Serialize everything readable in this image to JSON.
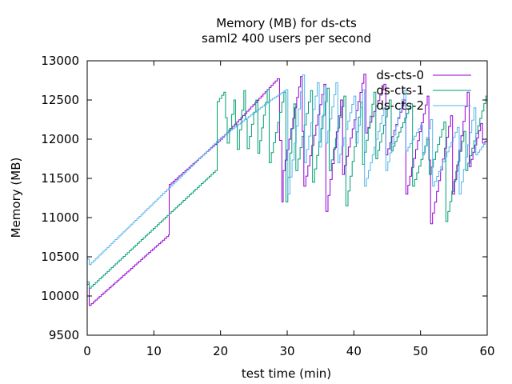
{
  "chart_data": {
    "type": "line",
    "title": "Memory (MB) for ds-cts",
    "subtitle": "saml2 400 users per second",
    "xlabel": "test time (min)",
    "ylabel": "Memory (MB)",
    "xlim": [
      0,
      60
    ],
    "ylim": [
      9500,
      13000
    ],
    "xticks": [
      0,
      10,
      20,
      30,
      40,
      50,
      60
    ],
    "yticks": [
      9500,
      10000,
      10500,
      11000,
      11500,
      12000,
      12500,
      13000
    ],
    "grid": false,
    "legend": "top-right",
    "line_style": "steps",
    "series": [
      {
        "name": "ds-cts-0",
        "color": "#9400d3",
        "x": [
          0,
          0.3,
          12.2,
          12.3,
          20,
          28.5,
          29.2,
          29.4,
          32,
          32.5,
          35.5,
          35.8,
          38,
          38.3,
          41.5,
          41.8,
          44.5,
          44.8,
          47.5,
          47.8,
          51,
          51.5,
          54.5,
          54.8,
          57,
          57.3,
          59,
          59.3,
          60
        ],
        "y": [
          10150,
          9880,
          10780,
          11420,
          12000,
          12770,
          11200,
          11600,
          12800,
          11400,
          12700,
          11080,
          12500,
          11550,
          12830,
          12080,
          12700,
          11800,
          12500,
          11300,
          12550,
          10920,
          12300,
          11300,
          12600,
          11650,
          12200,
          11950,
          12000
        ]
      },
      {
        "name": "ds-cts-1",
        "color": "#009e73",
        "x": [
          0,
          0.3,
          19.2,
          19.5,
          20.5,
          21,
          22,
          22.5,
          23.5,
          24,
          25.3,
          25.6,
          27,
          27.3,
          29.5,
          29.8,
          31,
          31.3,
          33.5,
          33.8,
          36,
          36.3,
          38.5,
          38.8,
          41,
          41.3,
          43,
          43.3,
          45.3,
          45.6,
          48.5,
          48.8,
          51,
          51.3,
          53.5,
          53.8,
          56.5,
          56.8,
          59.8,
          60
        ],
        "y": [
          10180,
          10100,
          11600,
          12480,
          12600,
          11950,
          12500,
          11870,
          12620,
          11880,
          12500,
          11820,
          12630,
          11700,
          12600,
          11200,
          12450,
          11600,
          12620,
          11450,
          12650,
          11600,
          12550,
          11150,
          12470,
          11680,
          12600,
          11750,
          12500,
          11850,
          12450,
          11400,
          12000,
          11550,
          12220,
          10950,
          12100,
          11600,
          12550,
          12500
        ]
      },
      {
        "name": "ds-cts-2",
        "color": "#56b4e9",
        "x": [
          0,
          0.3,
          20,
          27.5,
          29.8,
          30.1,
          32.3,
          32.6,
          34.5,
          34.8,
          35.5,
          35.8,
          37.3,
          37.6,
          40,
          40.3,
          41.3,
          41.6,
          44.5,
          44.8,
          47.5,
          47.8,
          50,
          50.3,
          51.5,
          51.8,
          55.5,
          55.8,
          58,
          58.3,
          60
        ],
        "y": [
          10470,
          10400,
          12020,
          12500,
          12630,
          11300,
          12820,
          11700,
          12720,
          11900,
          12680,
          11950,
          12720,
          11700,
          12550,
          11950,
          12630,
          11400,
          12400,
          11600,
          12620,
          11850,
          12180,
          11800,
          12250,
          11400,
          12150,
          11300,
          12400,
          11800,
          12000
        ]
      }
    ]
  }
}
